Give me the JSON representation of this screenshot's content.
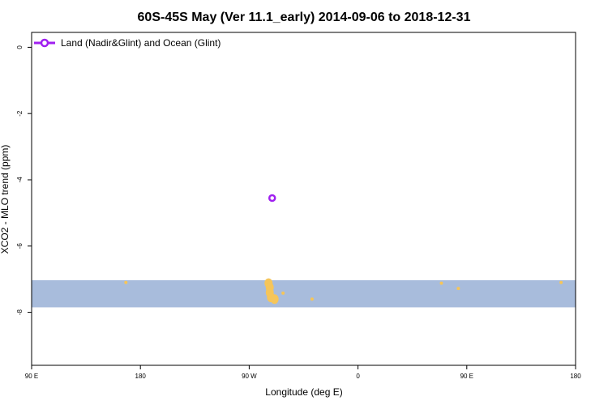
{
  "chart_data": {
    "type": "scatter",
    "title": "60S-45S May (Ver 11.1_early)   2014-09-06 to 2018-12-31",
    "xlabel": "Longitude (deg E)",
    "ylabel": "XCO2 - MLO trend (ppm)",
    "x_ticks": [
      "90 E",
      "180",
      "90 W",
      "0",
      "90 E",
      "180"
    ],
    "x_tick_values": [
      90,
      180,
      270,
      360,
      450,
      540
    ],
    "xlim": [
      90,
      540
    ],
    "y_ticks": [
      "0",
      "-2",
      "-4",
      "-6",
      "-8"
    ],
    "y_tick_values": [
      0,
      -2,
      -4,
      -6,
      -8
    ],
    "ylim": [
      -9.6,
      0.45
    ],
    "legend_position": "top-left",
    "series": [
      {
        "name": "Land (Nadir&Glint) and Ocean (Glint)",
        "color": "#a020f0",
        "marker": "open-circle",
        "points": [
          {
            "x": 289,
            "y": -4.55
          }
        ]
      }
    ],
    "map_band": {
      "y_range": [
        -7.85,
        -7.03
      ],
      "ocean_color": "#a8bcdc",
      "land_color": "#f5c55a",
      "land_patches": [
        {
          "lon": 168,
          "lat": -7.1
        },
        {
          "lon": 286,
          "lat": -7.12
        },
        {
          "lon": 287,
          "lat": -7.25
        },
        {
          "lon": 287,
          "lat": -7.4
        },
        {
          "lon": 288,
          "lat": -7.55
        },
        {
          "lon": 291,
          "lat": -7.6
        },
        {
          "lon": 298,
          "lat": -7.42
        },
        {
          "lon": 322,
          "lat": -7.6
        },
        {
          "lon": 429,
          "lat": -7.12
        },
        {
          "lon": 443,
          "lat": -7.28
        },
        {
          "lon": 528,
          "lat": -7.1
        }
      ]
    }
  }
}
